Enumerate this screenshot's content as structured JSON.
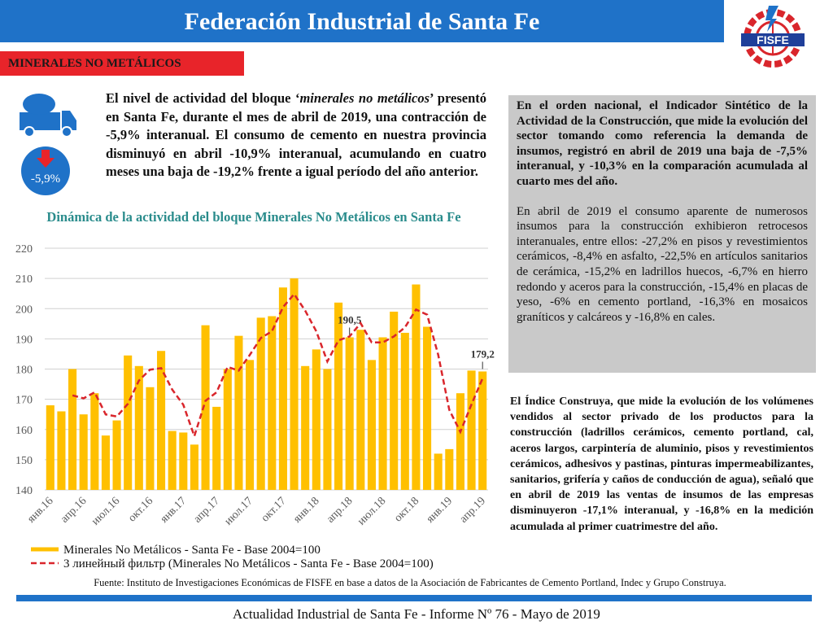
{
  "header": {
    "title": "Federación Industrial de Santa Fe",
    "logo_text": "FISFE"
  },
  "section_tag": "MINERALES NO METÁLICOS",
  "badge": "-5,9%",
  "intro": [
    "El nivel de actividad del bloque ‘",
    "minerales no metálicos",
    "’ presentó en Santa Fe, durante el mes de abril de 2019, una contracción de -5,9% interanual. El consumo de cemento en nuestra provincia disminuyó en abril -10,9% interanual, acumulando en cuatro meses una baja de -19,2% frente a igual período del año anterior."
  ],
  "national_box": {
    "paragraphs": [
      "En el orden nacional, el Indicador Sintético de la Actividad de la Construcción, que mide la evolución del sector tomando como referencia la demanda de insumos, registró en abril de 2019 una baja de -7,5% interanual, y -10,3% en la comparación acumulada al cuarto mes del año.",
      "En abril de 2019 el consumo aparente de numerosos insumos para la construcción exhibieron retrocesos interanuales, entre ellos: -27,2% en pisos y revestimientos cerámicos, -8,4% en asfalto, -22,5% en artículos sanitarios de cerámica, -15,2% en ladrillos huecos, -6,7% en hierro redondo y aceros para la construcción, -15,4% en placas de yeso, -6% en cemento portland, -16,3% en mosaicos graníticos y calcáreos y -16,8% en cales."
    ]
  },
  "construya_paragraph": "El Índice Construya, que mide la evolución de los volúmenes vendidos al sector privado de los productos para la construcción (ladrillos cerámicos, cemento portland, cal, aceros largos, carpintería de aluminio, pisos y revestimientos cerámicos, adhesivos y pastinas, pinturas impermeabilizantes, sanitarios, grifería y caños de conducción de agua), señaló que en abril de 2019 las ventas de insumos de las empresas disminuyeron -17,1% interanual, y -16,8% en la medición acumulada al primer cuatrimestre del año.",
  "source": "Fuente: Instituto de Investigaciones Económicas de FISFE en base a datos de la Asociación de Fabricantes de Cemento Portland, Indec y Grupo Construya.",
  "footer": "Actualidad Industrial de Santa Fe - Informe Nº 76 - Mayo de 2019",
  "chart_data": {
    "type": "bar",
    "title": "Dinámica de la actividad del bloque Minerales No Metálicos en Santa Fe",
    "categories": [
      "янв.16",
      null,
      null,
      "апр.16",
      null,
      null,
      "июл.16",
      null,
      null,
      "окт.16",
      null,
      null,
      "янв.17",
      null,
      null,
      "апр.17",
      null,
      null,
      "июл.17",
      null,
      null,
      "окт.17",
      null,
      null,
      "янв.18",
      null,
      null,
      "апр.18",
      null,
      null,
      "июл.18",
      null,
      null,
      "окт.18",
      null,
      null,
      "янв.19",
      null,
      null,
      "апр.19"
    ],
    "series": [
      {
        "name": "Minerales No Metálicos - Santa Fe - Base 2004=100",
        "type": "bar",
        "color": "#ffc000",
        "values": [
          168,
          166,
          180,
          165,
          172,
          158,
          163,
          184.5,
          181,
          174,
          186,
          159.5,
          159,
          155,
          194.5,
          167.5,
          180,
          191,
          183,
          197,
          197.5,
          207,
          210,
          181,
          186.5,
          180,
          202,
          190.5,
          193,
          183,
          190.5,
          199,
          192,
          208,
          194,
          152,
          153.5,
          172,
          179.5,
          179.2
        ],
        "value_labels": [
          null,
          null,
          null,
          null,
          null,
          null,
          null,
          null,
          null,
          null,
          null,
          null,
          null,
          null,
          null,
          null,
          null,
          null,
          null,
          null,
          null,
          null,
          null,
          null,
          null,
          null,
          null,
          "190,5",
          null,
          null,
          null,
          null,
          null,
          null,
          null,
          null,
          null,
          null,
          null,
          "179,2"
        ]
      },
      {
        "name": "3 линейный фильтр (Minerales No Metálicos - Santa Fe - Base 2004=100)",
        "type": "line",
        "color": "#d9262c",
        "values": [
          null,
          null,
          171.3,
          170.3,
          172.3,
          165,
          164.3,
          168.5,
          176.2,
          179.8,
          180.3,
          173.2,
          168.2,
          157.8,
          169.5,
          172.3,
          180.7,
          179.5,
          184.7,
          190.3,
          192.5,
          200.5,
          204.8,
          199.3,
          192.5,
          182.5,
          189.5,
          190.8,
          195.2,
          188.8,
          188.8,
          190.8,
          193.8,
          199.7,
          198,
          184.7,
          166.5,
          159.2,
          168.3,
          176.9
        ]
      }
    ],
    "ylim": [
      140,
      220
    ],
    "yticks": [
      140,
      150,
      160,
      170,
      180,
      190,
      200,
      210,
      220
    ],
    "grid": true
  }
}
